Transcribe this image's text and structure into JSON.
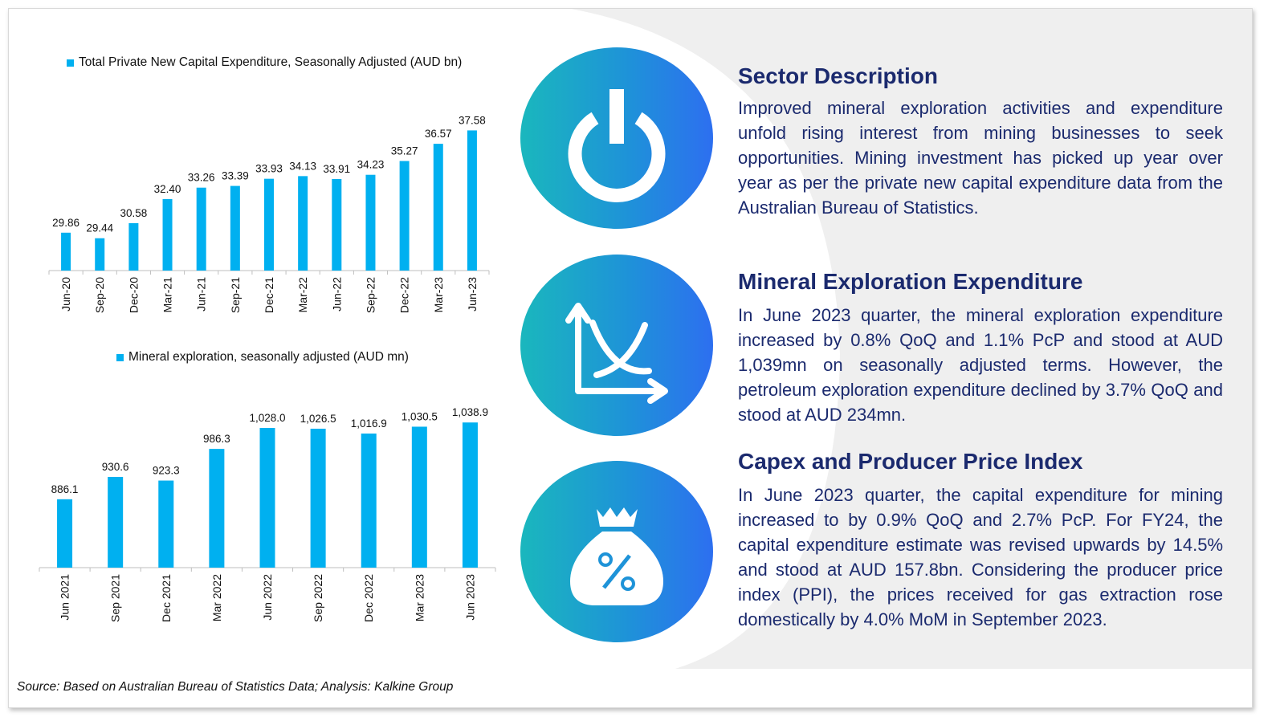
{
  "colors": {
    "bar": "#00b0f0",
    "heading": "#1b2a6e",
    "body_text": "#1b2a6e",
    "circle_gradient_start": "#1ab7bd",
    "circle_gradient_end": "#2d6ff0",
    "panel_bg": "#efefef"
  },
  "chart_data": [
    {
      "type": "bar",
      "legend": "Total Private New Capital Expenditure, Seasonally Adjusted (AUD bn)",
      "categories": [
        "Jun-20",
        "Sep-20",
        "Dec-20",
        "Mar-21",
        "Jun-21",
        "Sep-21",
        "Dec-21",
        "Mar-22",
        "Jun-22",
        "Sep-22",
        "Dec-22",
        "Mar-23",
        "Jun-23"
      ],
      "values": [
        29.86,
        29.44,
        30.58,
        32.4,
        33.26,
        33.39,
        33.93,
        34.13,
        33.91,
        34.23,
        35.27,
        36.57,
        37.58
      ],
      "value_labels": [
        "29.86",
        "29.44",
        "30.58",
        "32.40",
        "33.26",
        "33.39",
        "33.93",
        "34.13",
        "33.91",
        "34.23",
        "35.27",
        "36.57",
        "37.58"
      ],
      "ylim": [
        27,
        39
      ],
      "grid": false,
      "legend_position": "top"
    },
    {
      "type": "bar",
      "legend": "Mineral exploration, seasonally adjusted (AUD mn)",
      "categories": [
        "Jun 2021",
        "Sep 2021",
        "Dec 2021",
        "Mar 2022",
        "Jun 2022",
        "Sep 2022",
        "Dec 2022",
        "Mar 2023",
        "Jun 2023"
      ],
      "values": [
        886.1,
        930.6,
        923.3,
        986.3,
        1028.0,
        1026.5,
        1016.9,
        1030.5,
        1038.9
      ],
      "value_labels": [
        "886.1",
        "930.6",
        "923.3",
        "986.3",
        "1,028.0",
        "1,026.5",
        "1,016.9",
        "1,030.5",
        "1,038.9"
      ],
      "ylim": [
        750,
        1060
      ],
      "grid": false,
      "legend_position": "top"
    }
  ],
  "sections": [
    {
      "icon": "power-icon",
      "title": "Sector Description",
      "body": "Improved mineral exploration activities and expenditure unfold rising interest from mining businesses to seek opportunities. Mining investment has picked up year over year as per the private new capital expenditure data from the Australian Bureau of Statistics."
    },
    {
      "icon": "chart-axes-icon",
      "title": "Mineral Exploration Expenditure",
      "body": "In June 2023 quarter, the mineral exploration expenditure increased by 0.8% QoQ and 1.1% PcP and stood at AUD 1,039mn on seasonally adjusted terms. However, the petroleum exploration expenditure declined by 3.7% QoQ and stood at AUD 234mn."
    },
    {
      "icon": "money-bag-percent-icon",
      "title": "Capex and Producer Price Index",
      "body": "In June 2023 quarter, the capital expenditure for mining increased to by 0.9% QoQ and 2.7% PcP. For FY24, the capital expenditure estimate was revised upwards by 14.5% and stood at AUD 157.8bn. Considering the producer price index (PPI), the prices received for gas extraction rose domestically by 4.0% MoM in September 2023."
    }
  ],
  "source_note": "Source: Based on Australian Bureau of Statistics Data; Analysis: Kalkine Group"
}
